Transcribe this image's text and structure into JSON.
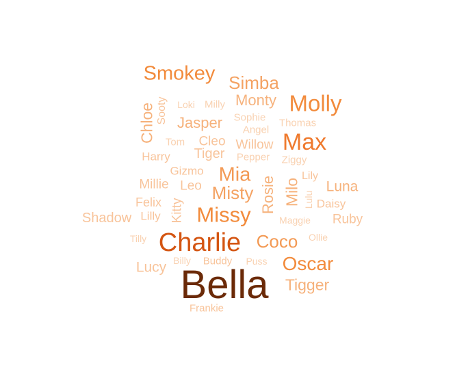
{
  "words": [
    {
      "text": "Bella",
      "color": "#6b2a08"
    },
    {
      "text": "Charlie",
      "color": "#d45512"
    },
    {
      "text": "Max",
      "color": "#ef7a2e"
    },
    {
      "text": "Molly",
      "color": "#f28b3c"
    },
    {
      "text": "Smokey",
      "color": "#f28b3c"
    },
    {
      "text": "Oscar",
      "color": "#f28b3c"
    },
    {
      "text": "Missy",
      "color": "#f28b3c"
    },
    {
      "text": "Coco",
      "color": "#f39a55"
    },
    {
      "text": "Mia",
      "color": "#f39a55"
    },
    {
      "text": "Misty",
      "color": "#f4a262"
    },
    {
      "text": "Simba",
      "color": "#f4a262"
    },
    {
      "text": "Tigger",
      "color": "#f6b27c"
    },
    {
      "text": "Jasper",
      "color": "#f6b27c"
    },
    {
      "text": "Monty",
      "color": "#f6b27c"
    },
    {
      "text": "Luna",
      "color": "#f6b27c"
    },
    {
      "text": "Milo",
      "color": "#f6b27c"
    },
    {
      "text": "Rosie",
      "color": "#f6b27c"
    },
    {
      "text": "Chloe",
      "color": "#f6b27c"
    },
    {
      "text": "Lucy",
      "color": "#f8c49b"
    },
    {
      "text": "Ruby",
      "color": "#f8c49b"
    },
    {
      "text": "Shadow",
      "color": "#f8c49b"
    },
    {
      "text": "Kitty",
      "color": "#f8c49b"
    },
    {
      "text": "Cleo",
      "color": "#f8c49b"
    },
    {
      "text": "Tiger",
      "color": "#f8c49b"
    },
    {
      "text": "Willow",
      "color": "#f8c49b"
    },
    {
      "text": "Millie",
      "color": "#f8c49b"
    },
    {
      "text": "Leo",
      "color": "#f8c49b"
    },
    {
      "text": "Harry",
      "color": "#f8c49b"
    },
    {
      "text": "Felix",
      "color": "#f8c49b"
    },
    {
      "text": "Daisy",
      "color": "#f8c49b"
    },
    {
      "text": "Lilly",
      "color": "#f8c49b"
    },
    {
      "text": "Gizmo",
      "color": "#f8c49b"
    },
    {
      "text": "Sooty",
      "color": "#f8c49b"
    },
    {
      "text": "Buddy",
      "color": "#f8c49b"
    },
    {
      "text": "Frankie",
      "color": "#f8c49b"
    },
    {
      "text": "Lily",
      "color": "#f8c49b"
    },
    {
      "text": "Angel",
      "color": "#f9d2b2"
    },
    {
      "text": "Sophie",
      "color": "#f9d2b2"
    },
    {
      "text": "Thomas",
      "color": "#f9d2b2"
    },
    {
      "text": "Tom",
      "color": "#f9d2b2"
    },
    {
      "text": "Pepper",
      "color": "#f9d2b2"
    },
    {
      "text": "Ziggy",
      "color": "#f9d2b2"
    },
    {
      "text": "Lulu",
      "color": "#f9d2b2"
    },
    {
      "text": "Maggie",
      "color": "#f9d2b2"
    },
    {
      "text": "Ollie",
      "color": "#f9d2b2"
    },
    {
      "text": "Tilly",
      "color": "#f9d2b2"
    },
    {
      "text": "Billy",
      "color": "#f9d2b2"
    },
    {
      "text": "Puss",
      "color": "#f9d2b2"
    },
    {
      "text": "Loki",
      "color": "#f9d2b2"
    },
    {
      "text": "Milly",
      "color": "#f9d2b2"
    }
  ]
}
